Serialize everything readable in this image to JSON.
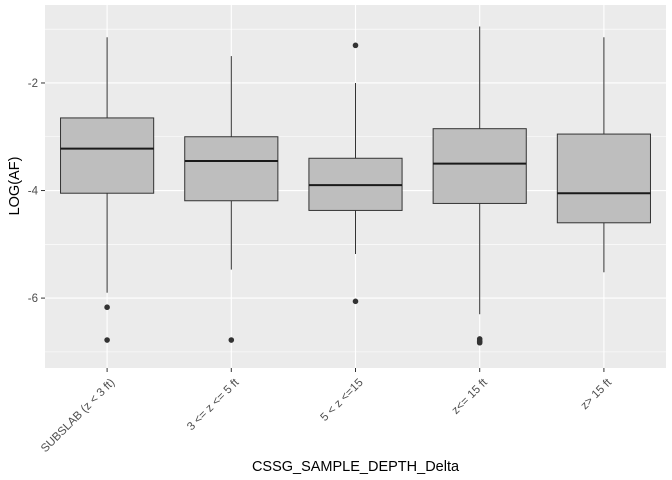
{
  "chart_data": {
    "type": "boxplot",
    "xlabel": "CSSG_SAMPLE_DEPTH_Delta",
    "ylabel": "LOG(AF)",
    "ylim": [
      -7.3,
      -0.55
    ],
    "yticks": [
      -6,
      -4,
      -2
    ],
    "grid": true,
    "categories": [
      "SUBSLAB (z < 3 ft)",
      "3 <= z <= 5 ft",
      "5 < z <=15",
      "z<= 15 ft",
      "z> 15 ft"
    ],
    "boxes": [
      {
        "category": "SUBSLAB (z < 3 ft)",
        "whisker_low": -5.9,
        "q1": -4.05,
        "median": -3.22,
        "q3": -2.65,
        "whisker_high": -1.15,
        "outliers": [
          -6.17,
          -6.78
        ]
      },
      {
        "category": "3 <= z <= 5 ft",
        "whisker_low": -5.47,
        "q1": -4.19,
        "median": -3.45,
        "q3": -3.0,
        "whisker_high": -1.5,
        "outliers": [
          -6.78
        ]
      },
      {
        "category": "5 < z <=15",
        "whisker_low": -5.18,
        "q1": -4.37,
        "median": -3.9,
        "q3": -3.4,
        "whisker_high": -2.0,
        "outliers": [
          -1.3,
          -6.06
        ]
      },
      {
        "category": "z<= 15 ft",
        "whisker_low": -6.3,
        "q1": -4.24,
        "median": -3.5,
        "q3": -2.85,
        "whisker_high": -0.95,
        "outliers": [
          -6.76,
          -6.8,
          -6.83
        ]
      },
      {
        "category": "z> 15 ft",
        "whisker_low": -5.52,
        "q1": -4.6,
        "median": -4.05,
        "q3": -2.95,
        "whisker_high": -1.15,
        "outliers": []
      }
    ],
    "colors": {
      "panel_background": "#ebebeb",
      "grid_major": "#ffffff",
      "box_fill": "#bebebe",
      "box_outline": "#333333",
      "median_line": "#1a1a1a",
      "outlier": "#333333"
    }
  }
}
